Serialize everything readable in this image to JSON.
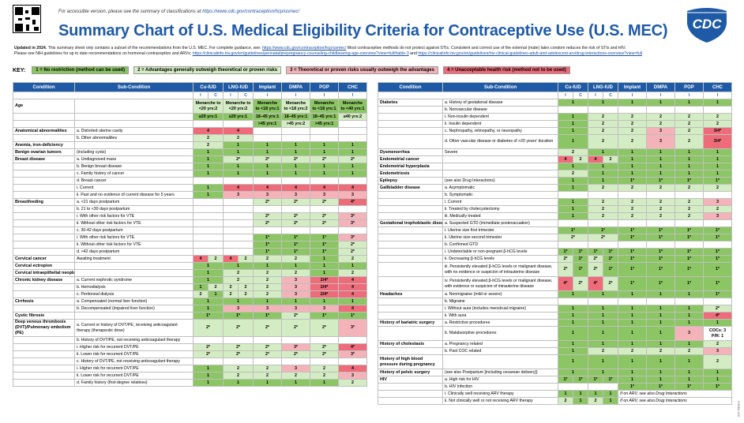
{
  "access_note": "For accessible version, please see the summary of classifications at",
  "access_link": "https://www.cdc.gov/contraception/hcp/usmec/",
  "title": "Summary Chart of U.S. Medical Eligibility Criteria for Contraceptive Use (U.S. MEC)",
  "logo_text": "CDC",
  "update_bold": "Updated in 2024.",
  "update_line1": "This summary sheet only contains a subset of the recommendations from the U.S. MEC. For complete guidance, see:",
  "update_link1": "https://www.cdc.gov/contraception/hcp/usmec/",
  "update_line1b": "Most contraceptive methods do not protect against STIs. Consistent and correct use of the external (male) latex condom reduces the risk of STIs and HIV.",
  "update_line2": "Please see NIH guidelines for up to date recommendations on hormonal contraception and ARVs:",
  "update_link2": "https://clinicalinfo.hiv.gov/en/guidelines/perinatal/prepregnancy-counseling-childbearing-age-overview?view=full#table-3",
  "update_and": "and",
  "update_link3": "https://clinicalinfo.hiv.gov/en/guidelines/hiv-clinical-guidelines-adult-and-adolescent-arv/drug-interactions-overview?view=full",
  "key": {
    "label": "KEY:",
    "items": [
      "1 = No restriction (method can be used)",
      "2 = Advantages generally outweigh theoretical or proven risks",
      "3 = Theoretical or proven risks usually outweigh the advantages",
      "4 = Unacceptable health risk (method not to be used)"
    ]
  },
  "headers": [
    "Condition",
    "Sub-Condition",
    "Cu-IUD",
    "LNG-IUD",
    "Implant",
    "DMPA",
    "POP",
    "CHC"
  ],
  "ic": [
    "I",
    "C",
    "I",
    "C",
    "I",
    "I",
    "I",
    "I"
  ],
  "left_rows": [
    {
      "c": "Age",
      "s": "",
      "v": [
        "Menarche to <20 yrs:2",
        "",
        "Menarche to <20 yrs:2",
        "",
        "Menarche to <18 yrs:1",
        "Menarche to <18 yrs:2",
        "Menarche to <18 yrs:1",
        "Menarche to <40 yrs:1"
      ],
      "tall": true
    },
    {
      "c": "",
      "s": "",
      "v": [
        "≥20 yrs:1",
        "",
        "≥20 yrs:1",
        "",
        "18–45 yrs:1",
        "18–45 yrs:1",
        "18–45 yrs:1",
        "≥40 yrs:2"
      ]
    },
    {
      "c": "",
      "s": "",
      "v": [
        "",
        "",
        "",
        "",
        ">45 yrs:1",
        ">45 yrs:2",
        ">45 yrs:1",
        ""
      ]
    },
    {
      "c": "Anatomical abnormalities",
      "s": "a. Distorted uterine cavity",
      "v": [
        "4",
        "",
        "4",
        "",
        "",
        "",
        "",
        ""
      ]
    },
    {
      "c": "",
      "s": "b. Other abnormalities",
      "v": [
        "2",
        "",
        "2",
        "",
        "",
        "",
        "",
        ""
      ]
    },
    {
      "c": "Anemia, iron-deficiency",
      "s": "",
      "v": [
        "2",
        "",
        "1",
        "",
        "1",
        "1",
        "1",
        "1"
      ]
    },
    {
      "c": "Benign ovarian tumors",
      "s": "(including cysts)",
      "v": [
        "1",
        "",
        "1",
        "",
        "1",
        "1",
        "1",
        "1"
      ]
    },
    {
      "c": "Breast disease",
      "s": "a. Undiagnosed mass",
      "v": [
        "1",
        "",
        "2*",
        "",
        "2*",
        "2*",
        "2*",
        "2*"
      ]
    },
    {
      "c": "",
      "s": "b. Benign breast disease",
      "v": [
        "1",
        "",
        "1",
        "",
        "1",
        "1",
        "1",
        "1"
      ]
    },
    {
      "c": "",
      "s": "c. Family history of cancer",
      "v": [
        "1",
        "",
        "1",
        "",
        "1",
        "1",
        "1",
        "1"
      ]
    },
    {
      "c": "",
      "s": "d. Breast cancer",
      "v": [
        "",
        "",
        "",
        "",
        "",
        "",
        "",
        ""
      ]
    },
    {
      "c": "",
      "s": "i. Current",
      "v": [
        "1",
        "",
        "4",
        "",
        "4",
        "4",
        "4",
        "4"
      ]
    },
    {
      "c": "",
      "s": "ii. Past and no evidence of current disease for 5 years",
      "v": [
        "1",
        "",
        "3",
        "",
        "3",
        "3",
        "3",
        "3"
      ]
    },
    {
      "c": "Breastfeeding",
      "s": "a. <21 days postpartum",
      "v": [
        "",
        "",
        "",
        "",
        "2*",
        "2*",
        "2*",
        "4*"
      ]
    },
    {
      "c": "",
      "s": "b. 21 to <30 days postpartum",
      "v": [
        "",
        "",
        "",
        "",
        "",
        "",
        "",
        ""
      ]
    },
    {
      "c": "",
      "s": "i. With other risk factors for VTE",
      "v": [
        "",
        "",
        "",
        "",
        "2*",
        "2*",
        "2*",
        "3*"
      ]
    },
    {
      "c": "",
      "s": "ii. Without other risk factors for VTE",
      "v": [
        "",
        "",
        "",
        "",
        "2*",
        "2*",
        "2*",
        "3*"
      ]
    },
    {
      "c": "",
      "s": "c. 30-42 days postpartum",
      "v": [
        "",
        "",
        "",
        "",
        "",
        "",
        "",
        ""
      ]
    },
    {
      "c": "",
      "s": "i. With other risk factors for VTE",
      "v": [
        "",
        "",
        "",
        "",
        "1*",
        "1*",
        "1*",
        "3*"
      ]
    },
    {
      "c": "",
      "s": "ii. Without other risk factors for VTE",
      "v": [
        "",
        "",
        "",
        "",
        "1*",
        "1*",
        "1*",
        "2*"
      ]
    },
    {
      "c": "",
      "s": "d. >42 days postpartum",
      "v": [
        "",
        "",
        "",
        "",
        "1*",
        "1*",
        "1*",
        "2*"
      ]
    },
    {
      "c": "Cervical cancer",
      "s": "Awaiting treatment",
      "v": [
        "4",
        "2",
        "4",
        "2",
        "2",
        "2",
        "1",
        "2"
      ]
    },
    {
      "c": "Cervical ectropion",
      "s": "",
      "v": [
        "1",
        "",
        "1",
        "",
        "1",
        "1",
        "1",
        "1"
      ]
    },
    {
      "c": "Cervical intraepithelial neoplasia",
      "s": "",
      "v": [
        "1",
        "",
        "2",
        "",
        "2",
        "2",
        "1",
        "2"
      ]
    },
    {
      "c": "Chronic kidney disease",
      "s": "a. Current nephrotic syndrome",
      "v": [
        "1",
        "",
        "2",
        "",
        "2",
        "3",
        "2/4*",
        "4"
      ]
    },
    {
      "c": "",
      "s": "b. Hemodialysis",
      "v": [
        "1",
        "2",
        "2",
        "2",
        "2",
        "3",
        "2/4*",
        "4"
      ]
    },
    {
      "c": "",
      "s": "c. Peritoneal dialysis",
      "v": [
        "2",
        "1",
        "2",
        "2",
        "2",
        "3",
        "2/4*",
        "4"
      ]
    },
    {
      "c": "Cirrhosis",
      "s": "a. Compensated (normal liver function)",
      "v": [
        "1",
        "",
        "1",
        "",
        "1",
        "1",
        "1",
        "1"
      ]
    },
    {
      "c": "",
      "s": "b. Decompensated (impaired liver function)",
      "v": [
        "1",
        "",
        "3",
        "",
        "3",
        "3",
        "3",
        "4"
      ]
    },
    {
      "c": "Cystic fibrosis",
      "s": "",
      "v": [
        "1*",
        "",
        "1*",
        "",
        "1*",
        "2*",
        "1*",
        "1*"
      ]
    },
    {
      "c": "Deep venous thrombosis (DVT)/Pulmonary embolism (PE)",
      "s": "a. Current or history of DVT/PE, receiving anticoagulant therapy (therapeutic dose)",
      "v": [
        "2*",
        "",
        "2*",
        "",
        "2*",
        "2*",
        "2*",
        "3*"
      ],
      "tall": true
    },
    {
      "c": "",
      "s": "b. History of DVT/PE, not receiving anticoagulant therapy",
      "v": [
        "",
        "",
        "",
        "",
        "",
        "",
        "",
        ""
      ]
    },
    {
      "c": "",
      "s": "i. Higher risk for recurrent DVT/PE",
      "v": [
        "2*",
        "",
        "2*",
        "",
        "2*",
        "3*",
        "2*",
        "4*"
      ]
    },
    {
      "c": "",
      "s": "ii. Lower risk for recurrent DVT/PE",
      "v": [
        "2*",
        "",
        "2*",
        "",
        "2*",
        "2*",
        "2*",
        "3*"
      ]
    },
    {
      "c": "",
      "s": "c. History of DVT/PE, not receiving anticoagulant therapy",
      "v": [
        "",
        "",
        "",
        "",
        "",
        "",
        "",
        ""
      ]
    },
    {
      "c": "",
      "s": "i. Higher risk for recurrent DVT/PE",
      "v": [
        "1",
        "",
        "2",
        "",
        "2",
        "3",
        "2",
        "4"
      ]
    },
    {
      "c": "",
      "s": "ii. Lower risk for recurrent DVT/PE",
      "v": [
        "1",
        "",
        "2",
        "",
        "2",
        "2",
        "2",
        "3"
      ]
    },
    {
      "c": "",
      "s": "d. Family history (first-degree relatives)",
      "v": [
        "1",
        "",
        "1",
        "",
        "1",
        "1",
        "1",
        "2"
      ]
    }
  ],
  "right_rows": [
    {
      "c": "Diabetes",
      "s": "a. History of gestational disease",
      "v": [
        "1",
        "",
        "1",
        "",
        "1",
        "1",
        "1",
        "1"
      ]
    },
    {
      "c": "",
      "s": "b. Nonvascular disease",
      "v": [
        "",
        "",
        "",
        "",
        "",
        "",
        "",
        ""
      ]
    },
    {
      "c": "",
      "s": "i. Non-insulin dependent",
      "v": [
        "1",
        "",
        "2",
        "",
        "2",
        "2",
        "2",
        "2"
      ]
    },
    {
      "c": "",
      "s": "ii. Insulin dependent",
      "v": [
        "1",
        "",
        "2",
        "",
        "2",
        "2",
        "2",
        "2"
      ]
    },
    {
      "c": "",
      "s": "c. Nephropathy, retinopathy, or neuropathy",
      "v": [
        "1",
        "",
        "2",
        "",
        "2",
        "3",
        "2",
        "3/4*"
      ]
    },
    {
      "c": "",
      "s": "d. Other vascular disease or diabetes of >20 years' duration",
      "v": [
        "1",
        "",
        "2",
        "",
        "2",
        "3",
        "2",
        "3/4*"
      ],
      "tall": true
    },
    {
      "c": "Dysmenorrhea",
      "s": "Severe",
      "v": [
        "2",
        "",
        "1",
        "",
        "1",
        "1",
        "1",
        "1"
      ]
    },
    {
      "c": "Endometrial cancer",
      "s": "",
      "v": [
        "4",
        "2",
        "4",
        "2",
        "1",
        "1",
        "1",
        "1"
      ]
    },
    {
      "c": "Endometrial hyperplasia",
      "s": "",
      "v": [
        "1",
        "",
        "1",
        "",
        "1",
        "1",
        "1",
        "1"
      ]
    },
    {
      "c": "Endometriosis",
      "s": "",
      "v": [
        "2",
        "",
        "1",
        "",
        "1",
        "1",
        "1",
        "1"
      ]
    },
    {
      "c": "Epilepsy",
      "s": "(see also Drug Interactions)",
      "v": [
        "1",
        "",
        "1",
        "",
        "1*",
        "1*",
        "1*",
        "1*"
      ]
    },
    {
      "c": "Gallbladder disease",
      "s": "a. Asymptomatic",
      "v": [
        "1",
        "",
        "2",
        "",
        "2",
        "2",
        "2",
        "2"
      ]
    },
    {
      "c": "",
      "s": "b. Symptomatic",
      "v": [
        "",
        "",
        "",
        "",
        "",
        "",
        "",
        ""
      ]
    },
    {
      "c": "",
      "s": "i. Current",
      "v": [
        "1",
        "",
        "2",
        "",
        "2",
        "2",
        "2",
        "3"
      ]
    },
    {
      "c": "",
      "s": "ii. Treated by cholecystectomy",
      "v": [
        "1",
        "",
        "2",
        "",
        "2",
        "2",
        "2",
        "2"
      ]
    },
    {
      "c": "",
      "s": "iii. Medically treated",
      "v": [
        "1",
        "",
        "2",
        "",
        "2",
        "2",
        "2",
        "3"
      ]
    },
    {
      "c": "Gestational trophoblastic disease (GTD)",
      "s": "a. Suspected GTD (immediate postevacuation)",
      "v": [
        "",
        "",
        "",
        "",
        "",
        "",
        "",
        ""
      ]
    },
    {
      "c": "",
      "s": "i. Uterine size first trimester",
      "v": [
        "1*",
        "",
        "1*",
        "",
        "1*",
        "1*",
        "1*",
        "1*"
      ]
    },
    {
      "c": "",
      "s": "ii. Uterine size second trimester",
      "v": [
        "2*",
        "",
        "2*",
        "",
        "1*",
        "1*",
        "1*",
        "1*"
      ]
    },
    {
      "c": "",
      "s": "b. Confirmed GTD",
      "v": [
        "",
        "",
        "",
        "",
        "",
        "",
        "",
        ""
      ]
    },
    {
      "c": "",
      "s": "i. Undetectable or non-pregnant β-hCG levels",
      "v": [
        "1*",
        "1*",
        "1*",
        "1*",
        "1*",
        "1*",
        "1*",
        "1*"
      ]
    },
    {
      "c": "",
      "s": "ii. Decreasing β-hCG levels",
      "v": [
        "2*",
        "1*",
        "2*",
        "1*",
        "1*",
        "1*",
        "1*",
        "1*"
      ]
    },
    {
      "c": "",
      "s": "iii. Persistently elevated β-hCG levels or malignant disease, with no evidence or suspicion of intrauterine disease",
      "v": [
        "2*",
        "1*",
        "2*",
        "1*",
        "1*",
        "1*",
        "1*",
        "1*"
      ],
      "tall": true
    },
    {
      "c": "",
      "s": "iv. Persistently elevated β-hCG levels or malignant disease, with evidence or suspicion of intrauterine disease",
      "v": [
        "4*",
        "2*",
        "4*",
        "2*",
        "1*",
        "1*",
        "1*",
        "1*"
      ],
      "tall": true
    },
    {
      "c": "Headaches",
      "s": "a. Nonmigraine (mild or severe)",
      "v": [
        "1",
        "",
        "1",
        "",
        "1",
        "1",
        "1",
        "1*"
      ]
    },
    {
      "c": "",
      "s": "b. Migraine",
      "v": [
        "",
        "",
        "",
        "",
        "",
        "",
        "",
        ""
      ]
    },
    {
      "c": "",
      "s": "i. Without aura (includes menstrual migraine)",
      "v": [
        "1",
        "",
        "1",
        "",
        "1",
        "1",
        "1",
        "2*"
      ]
    },
    {
      "c": "",
      "s": "ii. With aura",
      "v": [
        "1",
        "",
        "1",
        "",
        "1",
        "1",
        "1",
        "4*"
      ]
    },
    {
      "c": "History of bariatric surgery",
      "s": "a. Restrictive procedures",
      "v": [
        "1",
        "",
        "1",
        "",
        "1",
        "1",
        "1",
        "1"
      ]
    },
    {
      "c": "",
      "s": "b. Malabsorptive procedures",
      "v": [
        "1",
        "",
        "1",
        "",
        "1",
        "1",
        "3",
        "COCs: 3 P/R: 1"
      ],
      "tall": true
    },
    {
      "c": "History of cholestasis",
      "s": "a. Pregnancy related",
      "v": [
        "1",
        "",
        "1",
        "",
        "1",
        "1",
        "1",
        "2"
      ]
    },
    {
      "c": "",
      "s": "b. Past COC related",
      "v": [
        "1",
        "",
        "2",
        "",
        "2",
        "2",
        "2",
        "3"
      ]
    },
    {
      "c": "History of high blood pressure during pregnancy",
      "s": "",
      "v": [
        "1",
        "",
        "1",
        "",
        "1",
        "1",
        "1",
        "2"
      ],
      "tall": true
    },
    {
      "c": "History of pelvic surgery",
      "s": "(see also Postpartum [including cesarean delivery])",
      "v": [
        "1",
        "",
        "1",
        "",
        "1",
        "1",
        "1",
        "1"
      ]
    },
    {
      "c": "HIV",
      "s": "a. High risk for HIV",
      "v": [
        "1*",
        "1*",
        "1*",
        "1*",
        "1",
        "1",
        "1",
        "1"
      ]
    },
    {
      "c": "",
      "s": "b. HIV infection",
      "v": [
        "",
        "",
        "",
        "",
        "1*",
        "1*",
        "1*",
        "1*"
      ]
    },
    {
      "c": "",
      "s": "i. Clinically well receiving ARV therapy",
      "v": [
        "1",
        "1",
        "1",
        "1",
        "If on ARV, see also Drug Interactions",
        "",
        "",
        ""
      ]
    },
    {
      "c": "",
      "s": "ii. Not clinically well or not receiving ARV therapy",
      "v": [
        "2",
        "1",
        "2",
        "1",
        "If on ARV, see also Drug Interactions",
        "",
        "",
        ""
      ]
    }
  ],
  "side_code": "CS364 123"
}
